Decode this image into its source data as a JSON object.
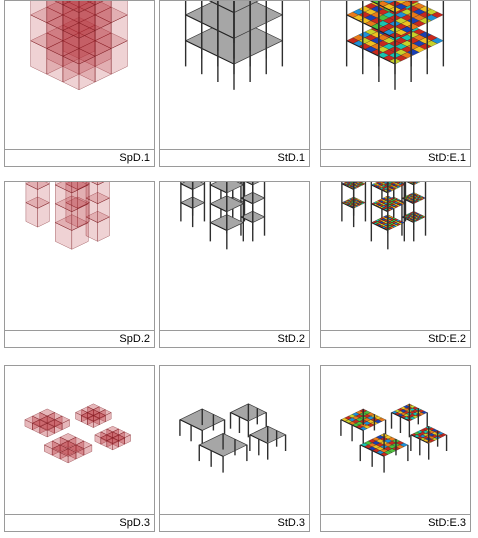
{
  "panels": [
    {
      "id": "p00",
      "label": "SpD.1",
      "kind": "spd",
      "scene": 1
    },
    {
      "id": "p01",
      "label": "StD.1",
      "kind": "std",
      "scene": 1
    },
    {
      "id": "p02",
      "label": "StD:E.1",
      "kind": "ste",
      "scene": 1
    },
    {
      "id": "p10",
      "label": "SpD.2",
      "kind": "spd",
      "scene": 2
    },
    {
      "id": "p11",
      "label": "StD.2",
      "kind": "std",
      "scene": 2
    },
    {
      "id": "p12",
      "label": "StD:E.2",
      "kind": "ste",
      "scene": 2
    },
    {
      "id": "p20",
      "label": "SpD.3",
      "kind": "spd",
      "scene": 3
    },
    {
      "id": "p21",
      "label": "StD.3",
      "kind": "std",
      "scene": 3
    },
    {
      "id": "p22",
      "label": "StD:E.3",
      "kind": "ste",
      "scene": 3
    }
  ],
  "colors": {
    "spd_fill": "#b8323a",
    "spd_stroke": "#7a1c22",
    "slab_fill": "#a6a6a6",
    "slab_stroke": "#3a3a3a",
    "column": "#2e2e2e",
    "fe_palette": [
      "#1a3fb5",
      "#1e90d8",
      "#19c4b0",
      "#4cbf3a",
      "#c8d12a",
      "#f0c020",
      "#e87a1a",
      "#c8281e"
    ]
  }
}
